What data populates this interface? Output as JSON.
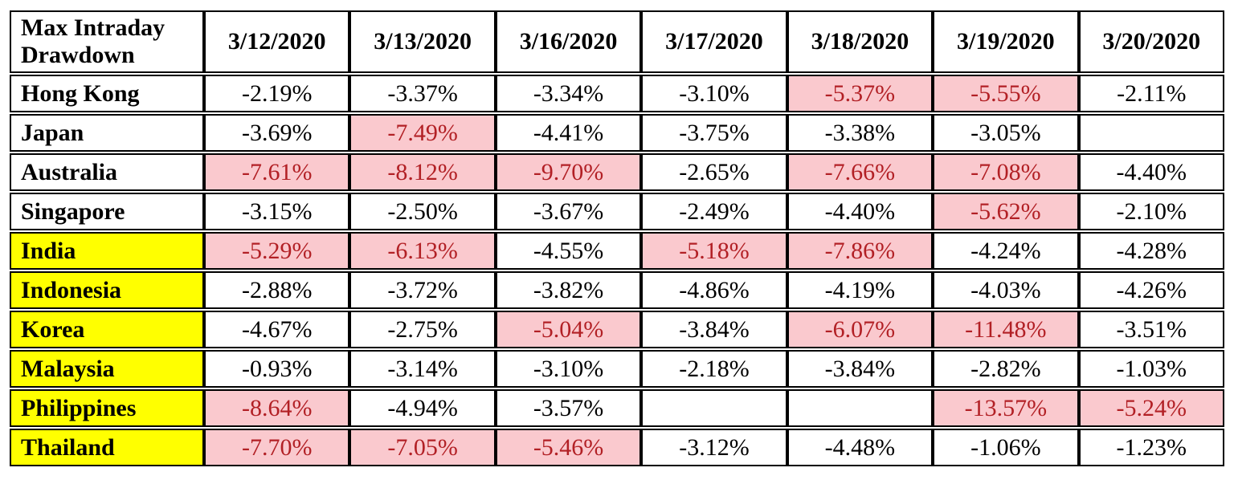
{
  "colors": {
    "alert_bg": "#fac9ce",
    "alert_text": "#b22025",
    "country_highlight_bg": "#ffff00",
    "border": "#000000"
  },
  "chart_data": {
    "type": "table",
    "title": "Max Intraday Drawdown",
    "title_lines": [
      "Max Intraday",
      "Drawdown"
    ],
    "columns": [
      "3/12/2020",
      "3/13/2020",
      "3/16/2020",
      "3/17/2020",
      "3/18/2020",
      "3/19/2020",
      "3/20/2020"
    ],
    "alert_meaning": "pink cell with dark red text = severe drawdown",
    "rows": [
      {
        "country": "Hong Kong",
        "country_highlight": false,
        "values": [
          "-2.19%",
          "-3.37%",
          "-3.34%",
          "-3.10%",
          "-5.37%",
          "-5.55%",
          "-2.11%"
        ],
        "alerts": [
          false,
          false,
          false,
          false,
          true,
          true,
          false
        ]
      },
      {
        "country": "Japan",
        "country_highlight": false,
        "values": [
          "-3.69%",
          "-7.49%",
          "-4.41%",
          "-3.75%",
          "-3.38%",
          "-3.05%",
          ""
        ],
        "alerts": [
          false,
          true,
          false,
          false,
          false,
          false,
          false
        ]
      },
      {
        "country": "Australia",
        "country_highlight": false,
        "values": [
          "-7.61%",
          "-8.12%",
          "-9.70%",
          "-2.65%",
          "-7.66%",
          "-7.08%",
          "-4.40%"
        ],
        "alerts": [
          true,
          true,
          true,
          false,
          true,
          true,
          false
        ]
      },
      {
        "country": "Singapore",
        "country_highlight": false,
        "values": [
          "-3.15%",
          "-2.50%",
          "-3.67%",
          "-2.49%",
          "-4.40%",
          "-5.62%",
          "-2.10%"
        ],
        "alerts": [
          false,
          false,
          false,
          false,
          false,
          true,
          false
        ]
      },
      {
        "country": "India",
        "country_highlight": true,
        "values": [
          "-5.29%",
          "-6.13%",
          "-4.55%",
          "-5.18%",
          "-7.86%",
          "-4.24%",
          "-4.28%"
        ],
        "alerts": [
          true,
          true,
          false,
          true,
          true,
          false,
          false
        ]
      },
      {
        "country": "Indonesia",
        "country_highlight": true,
        "values": [
          "-2.88%",
          "-3.72%",
          "-3.82%",
          "-4.86%",
          "-4.19%",
          "-4.03%",
          "-4.26%"
        ],
        "alerts": [
          false,
          false,
          false,
          false,
          false,
          false,
          false
        ]
      },
      {
        "country": "Korea",
        "country_highlight": true,
        "values": [
          "-4.67%",
          "-2.75%",
          "-5.04%",
          "-3.84%",
          "-6.07%",
          "-11.48%",
          "-3.51%"
        ],
        "alerts": [
          false,
          false,
          true,
          false,
          true,
          true,
          false
        ]
      },
      {
        "country": "Malaysia",
        "country_highlight": true,
        "values": [
          "-0.93%",
          "-3.14%",
          "-3.10%",
          "-2.18%",
          "-3.84%",
          "-2.82%",
          "-1.03%"
        ],
        "alerts": [
          false,
          false,
          false,
          false,
          false,
          false,
          false
        ]
      },
      {
        "country": "Philippines",
        "country_highlight": true,
        "values": [
          "-8.64%",
          "-4.94%",
          "-3.57%",
          "",
          "",
          "-13.57%",
          "-5.24%"
        ],
        "alerts": [
          true,
          false,
          false,
          false,
          false,
          true,
          true
        ]
      },
      {
        "country": "Thailand",
        "country_highlight": true,
        "values": [
          "-7.70%",
          "-7.05%",
          "-5.46%",
          "-3.12%",
          "-4.48%",
          "-1.06%",
          "-1.23%"
        ],
        "alerts": [
          true,
          true,
          true,
          false,
          false,
          false,
          false
        ]
      }
    ]
  }
}
